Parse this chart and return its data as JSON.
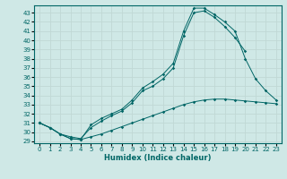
{
  "xlabel": "Humidex (Indice chaleur)",
  "bg_color": "#cfe8e6",
  "grid_color": "#c0d8d5",
  "line_color": "#006666",
  "spine_color": "#006666",
  "xlim": [
    -0.5,
    23.5
  ],
  "ylim": [
    28.8,
    43.8
  ],
  "xticks": [
    0,
    1,
    2,
    3,
    4,
    5,
    6,
    7,
    8,
    9,
    10,
    11,
    12,
    13,
    14,
    15,
    16,
    17,
    18,
    19,
    20,
    21,
    22,
    23
  ],
  "yticks": [
    29,
    30,
    31,
    32,
    33,
    34,
    35,
    36,
    37,
    38,
    39,
    40,
    41,
    42,
    43
  ],
  "tick_fontsize": 5.0,
  "xlabel_fontsize": 6.0,
  "line1_x": [
    0,
    1,
    2,
    3,
    4,
    5,
    6,
    7,
    8,
    9,
    10,
    11,
    12,
    13,
    14,
    15,
    16,
    17,
    18,
    19,
    20
  ],
  "line1_y": [
    31.0,
    30.5,
    29.8,
    29.5,
    29.3,
    30.5,
    31.2,
    31.8,
    32.3,
    33.2,
    34.5,
    35.0,
    35.8,
    37.0,
    40.5,
    43.0,
    43.2,
    42.5,
    41.5,
    40.3,
    38.8
  ],
  "line2_x": [
    0,
    1,
    2,
    3,
    4,
    5,
    6,
    7,
    8,
    9,
    10,
    11,
    12,
    13,
    14,
    15,
    16,
    17,
    18,
    19,
    20,
    21,
    22,
    23
  ],
  "line2_y": [
    31.0,
    30.5,
    29.8,
    29.3,
    29.2,
    30.8,
    31.5,
    32.0,
    32.5,
    33.5,
    34.8,
    35.5,
    36.3,
    37.5,
    41.0,
    43.5,
    43.5,
    42.8,
    42.0,
    41.0,
    38.0,
    35.8,
    34.5,
    33.5
  ],
  "line3_x": [
    0,
    1,
    2,
    3,
    4,
    5,
    6,
    7,
    8,
    9,
    10,
    11,
    12,
    13,
    14,
    15,
    16,
    17,
    18,
    19,
    20,
    21,
    22,
    23
  ],
  "line3_y": [
    31.0,
    30.5,
    29.8,
    29.3,
    29.2,
    29.5,
    29.8,
    30.2,
    30.6,
    31.0,
    31.4,
    31.8,
    32.2,
    32.6,
    33.0,
    33.3,
    33.5,
    33.6,
    33.6,
    33.5,
    33.4,
    33.3,
    33.2,
    33.1
  ]
}
